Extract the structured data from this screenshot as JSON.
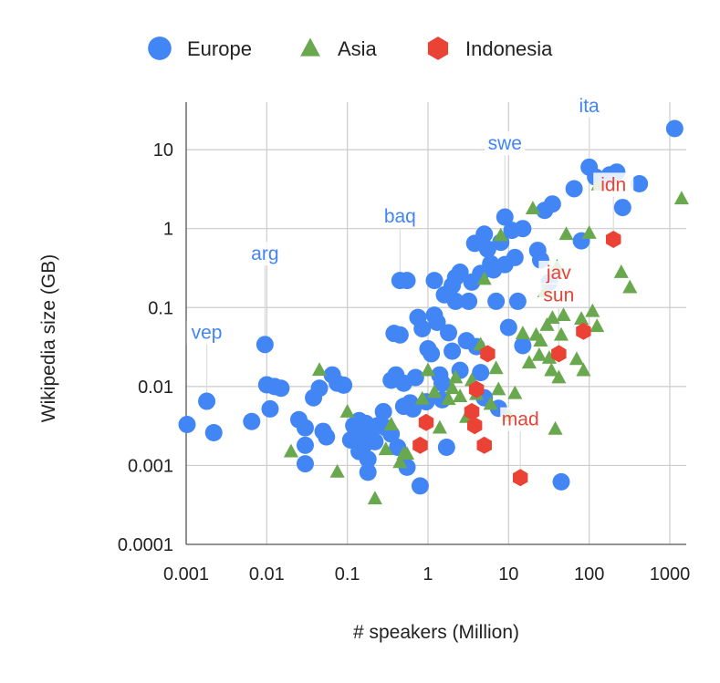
{
  "colors": {
    "Europe": "#4285f4",
    "Asia": "#6aa84f",
    "Indonesia": "#ea4335"
  },
  "chart_data": {
    "type": "scatter",
    "xlabel": "# speakers (Million)",
    "ylabel": "Wikipedia size (GB)",
    "x_scale": "log",
    "y_scale": "log",
    "xlim": [
      0.001,
      1600
    ],
    "ylim": [
      0.0001,
      40
    ],
    "x_ticks": [
      {
        "value": 0.001,
        "label": "0.001"
      },
      {
        "value": 0.01,
        "label": "0.01"
      },
      {
        "value": 0.1,
        "label": "0.1"
      },
      {
        "value": 1,
        "label": "1"
      },
      {
        "value": 10,
        "label": "10"
      },
      {
        "value": 100,
        "label": "100"
      },
      {
        "value": 1000,
        "label": "1000"
      }
    ],
    "y_ticks": [
      {
        "value": 0.0001,
        "label": "0.0001"
      },
      {
        "value": 0.001,
        "label": "0.001"
      },
      {
        "value": 0.01,
        "label": "0.01"
      },
      {
        "value": 0.1,
        "label": "0.1"
      },
      {
        "value": 1,
        "label": "1"
      },
      {
        "value": 10,
        "label": "10"
      }
    ],
    "grid": true,
    "legend_position": "top",
    "series": [
      {
        "name": "Europe",
        "marker": "circle",
        "points": [
          [
            0.001,
            0.0033
          ],
          [
            0.0018,
            0.0065
          ],
          [
            0.0022,
            0.0026
          ],
          [
            0.0065,
            0.0036
          ],
          [
            0.0095,
            0.034
          ],
          [
            0.01,
            0.0105
          ],
          [
            0.011,
            0.0052
          ],
          [
            0.0125,
            0.01
          ],
          [
            0.015,
            0.0095
          ],
          [
            0.025,
            0.0038
          ],
          [
            0.03,
            0.003
          ],
          [
            0.03,
            0.0018
          ],
          [
            0.03,
            0.00105
          ],
          [
            0.038,
            0.0072
          ],
          [
            0.045,
            0.0095
          ],
          [
            0.05,
            0.0027
          ],
          [
            0.055,
            0.0023
          ],
          [
            0.065,
            0.014
          ],
          [
            0.075,
            0.011
          ],
          [
            0.09,
            0.0104
          ],
          [
            0.11,
            0.0021
          ],
          [
            0.12,
            0.0032
          ],
          [
            0.13,
            0.0028
          ],
          [
            0.14,
            0.0015
          ],
          [
            0.14,
            0.0037
          ],
          [
            0.15,
            0.0024
          ],
          [
            0.16,
            0.0018
          ],
          [
            0.17,
            0.0034
          ],
          [
            0.18,
            0.0012
          ],
          [
            0.18,
            0.00082
          ],
          [
            0.2,
            0.0029
          ],
          [
            0.22,
            0.002
          ],
          [
            0.24,
            0.0032
          ],
          [
            0.28,
            0.0048
          ],
          [
            0.3,
            0.003
          ],
          [
            0.35,
            0.0025
          ],
          [
            0.35,
            0.012
          ],
          [
            0.38,
            0.047
          ],
          [
            0.4,
            0.014
          ],
          [
            0.42,
            0.0017
          ],
          [
            0.45,
            0.22
          ],
          [
            0.45,
            0.045
          ],
          [
            0.5,
            0.011
          ],
          [
            0.5,
            0.0056
          ],
          [
            0.55,
            0.22
          ],
          [
            0.55,
            0.00095
          ],
          [
            0.6,
            0.0062
          ],
          [
            0.65,
            0.0052
          ],
          [
            0.7,
            0.013
          ],
          [
            0.75,
            0.075
          ],
          [
            0.8,
            0.00055
          ],
          [
            0.85,
            0.054
          ],
          [
            0.95,
            0.0064
          ],
          [
            1.0,
            0.03
          ],
          [
            1.1,
            0.026
          ],
          [
            1.2,
            0.22
          ],
          [
            1.2,
            0.08
          ],
          [
            1.3,
            0.065
          ],
          [
            1.4,
            0.014
          ],
          [
            1.5,
            0.011
          ],
          [
            1.5,
            0.0068
          ],
          [
            1.6,
            0.145
          ],
          [
            1.7,
            0.0017
          ],
          [
            1.8,
            0.048
          ],
          [
            2.0,
            0.19
          ],
          [
            2.0,
            0.028
          ],
          [
            2.2,
            0.24
          ],
          [
            2.2,
            0.12
          ],
          [
            2.5,
            0.28
          ],
          [
            2.5,
            0.016
          ],
          [
            3.0,
            0.038
          ],
          [
            3.2,
            0.12
          ],
          [
            3.5,
            0.21
          ],
          [
            3.8,
            0.65
          ],
          [
            4.0,
            0.032
          ],
          [
            4.5,
            0.27
          ],
          [
            4.5,
            0.015
          ],
          [
            5.0,
            0.85
          ],
          [
            5.0,
            0.0072
          ],
          [
            5.5,
            0.55
          ],
          [
            6.0,
            0.36
          ],
          [
            6.5,
            0.3
          ],
          [
            7.0,
            0.12
          ],
          [
            7.5,
            0.0053
          ],
          [
            8.0,
            0.67
          ],
          [
            9.0,
            1.4
          ],
          [
            9.0,
            0.35
          ],
          [
            10.0,
            0.056
          ],
          [
            11.0,
            0.95
          ],
          [
            12.0,
            0.43
          ],
          [
            13.0,
            0.12
          ],
          [
            15.0,
            1.0
          ],
          [
            15.0,
            0.033
          ],
          [
            23.0,
            0.53
          ],
          [
            25.0,
            0.4
          ],
          [
            28.0,
            1.7
          ],
          [
            32.0,
            0.21
          ],
          [
            35.0,
            2.05
          ],
          [
            45.0,
            0.00062
          ],
          [
            65.0,
            3.2
          ],
          [
            80.0,
            0.7
          ],
          [
            100.0,
            6.0
          ],
          [
            120.0,
            4.5
          ],
          [
            150.0,
            4.1
          ],
          [
            180.0,
            4.8
          ],
          [
            220.0,
            5.2
          ],
          [
            260.0,
            1.85
          ],
          [
            420.0,
            3.7
          ],
          [
            1150.0,
            18.5
          ]
        ]
      },
      {
        "name": "Asia",
        "marker": "triangle",
        "points": [
          [
            0.045,
            0.0162
          ],
          [
            0.02,
            0.0015
          ],
          [
            0.075,
            0.00083
          ],
          [
            0.1,
            0.0048
          ],
          [
            0.22,
            0.00038
          ],
          [
            0.3,
            0.0016
          ],
          [
            0.35,
            0.0033
          ],
          [
            0.45,
            0.0011
          ],
          [
            0.5,
            0.0014
          ],
          [
            0.55,
            0.0014
          ],
          [
            0.85,
            0.007
          ],
          [
            1.0,
            0.016
          ],
          [
            1.2,
            0.0085
          ],
          [
            1.4,
            0.003
          ],
          [
            1.8,
            0.0069
          ],
          [
            2.0,
            0.0095
          ],
          [
            2.2,
            0.013
          ],
          [
            2.5,
            0.0075
          ],
          [
            3.0,
            0.0041
          ],
          [
            3.5,
            0.012
          ],
          [
            4.0,
            0.008
          ],
          [
            4.5,
            0.034
          ],
          [
            5.0,
            0.23
          ],
          [
            6.0,
            0.006
          ],
          [
            7.0,
            0.017
          ],
          [
            7.5,
            0.0092
          ],
          [
            8.0,
            0.82
          ],
          [
            10.0,
            0.0043
          ],
          [
            12.0,
            0.0082
          ],
          [
            15.0,
            0.047
          ],
          [
            18.0,
            0.02
          ],
          [
            20.0,
            1.8
          ],
          [
            22.0,
            0.045
          ],
          [
            24.0,
            0.025
          ],
          [
            25.0,
            0.038
          ],
          [
            28.0,
            0.16
          ],
          [
            30.0,
            0.06
          ],
          [
            32.0,
            0.023
          ],
          [
            34.0,
            0.016
          ],
          [
            35.0,
            0.074
          ],
          [
            38.0,
            0.0029
          ],
          [
            40.0,
            0.33
          ],
          [
            42.0,
            0.013
          ],
          [
            45.0,
            0.045
          ],
          [
            48.0,
            0.08
          ],
          [
            52.0,
            0.85
          ],
          [
            70.0,
            0.0222
          ],
          [
            80.0,
            0.072
          ],
          [
            85.0,
            0.016
          ],
          [
            100.0,
            0.88
          ],
          [
            110.0,
            0.09
          ],
          [
            125.0,
            0.058
          ],
          [
            130.0,
            3.6
          ],
          [
            250.0,
            0.28
          ],
          [
            320.0,
            0.18
          ],
          [
            1400.0,
            2.4
          ]
        ]
      },
      {
        "name": "Indonesia",
        "marker": "hexagon",
        "points": [
          [
            0.8,
            0.0018
          ],
          [
            0.95,
            0.0035
          ],
          [
            3.5,
            0.0048
          ],
          [
            3.8,
            0.0032
          ],
          [
            4.0,
            0.0092
          ],
          [
            5.0,
            0.0018
          ],
          [
            5.5,
            0.026
          ],
          [
            14.0,
            0.0007
          ],
          [
            42.0,
            0.026
          ],
          [
            85.0,
            0.05
          ],
          [
            200.0,
            0.73
          ]
        ]
      }
    ],
    "annotations": [
      {
        "text": "vep",
        "series": "Europe",
        "x": 0.0018,
        "y": 0.0065,
        "label_y": 0.04
      },
      {
        "text": "arg",
        "series": "Europe",
        "x": 0.0095,
        "y": 0.034,
        "label_y": 0.4
      },
      {
        "text": "baq",
        "series": "Europe",
        "x": 0.45,
        "y": 0.22,
        "label_y": 1.2
      },
      {
        "text": "swe",
        "series": "Europe",
        "x": 9.0,
        "y": 1.4,
        "label_y": 10.0
      },
      {
        "text": "ita",
        "series": "Europe",
        "x": 100.0,
        "y": 6.0,
        "label_y": 30.0
      },
      {
        "text": "idn",
        "series": "Indonesia",
        "x": 200.0,
        "y": 0.73,
        "label_y": 3.0
      },
      {
        "text": "jav",
        "series": "Indonesia",
        "x": 42.0,
        "y": 0.026,
        "label_y": 0.23
      },
      {
        "text": "sun",
        "series": "Indonesia",
        "x": 42.0,
        "y": 0.026,
        "label_y": 0.12
      },
      {
        "text": "mad",
        "series": "Indonesia",
        "x": 14.0,
        "y": 0.0007,
        "label_y": 0.0032
      }
    ]
  }
}
